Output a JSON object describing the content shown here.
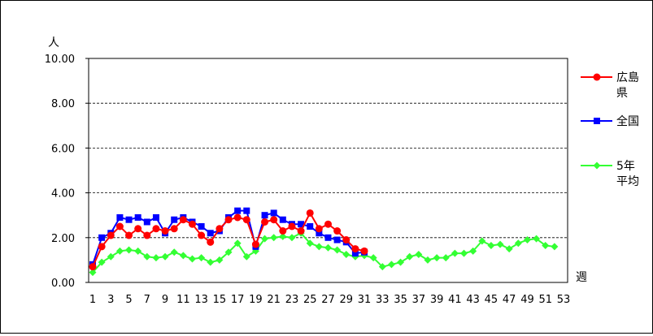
{
  "chart_data": {
    "type": "line",
    "ylabel": "人",
    "xlabel": "週",
    "ylim": [
      0,
      10
    ],
    "yticks": [
      "0.00",
      "2.00",
      "4.00",
      "6.00",
      "8.00",
      "10.00"
    ],
    "xlim": [
      1,
      53
    ],
    "xticks": [
      "1",
      "3",
      "5",
      "7",
      "9",
      "11",
      "13",
      "15",
      "17",
      "19",
      "21",
      "23",
      "25",
      "27",
      "29",
      "31",
      "33",
      "35",
      "37",
      "39",
      "41",
      "43",
      "45",
      "47",
      "49",
      "51",
      "53"
    ],
    "grid": "horizontal-dashed",
    "legend_position": "right",
    "series": [
      {
        "name": "広島県",
        "legend_lines": [
          "広島",
          "県"
        ],
        "color": "#FF0000",
        "marker": "circle",
        "x": [
          1,
          2,
          3,
          4,
          5,
          6,
          7,
          8,
          9,
          10,
          11,
          12,
          13,
          14,
          15,
          16,
          17,
          18,
          19,
          20,
          21,
          22,
          23,
          24,
          25,
          26,
          27,
          28,
          29,
          30,
          31
        ],
        "values": [
          0.7,
          1.6,
          2.1,
          2.5,
          2.1,
          2.4,
          2.1,
          2.4,
          2.3,
          2.4,
          2.8,
          2.6,
          2.1,
          1.8,
          2.4,
          2.8,
          2.9,
          2.8,
          1.7,
          2.7,
          2.8,
          2.3,
          2.5,
          2.3,
          3.1,
          2.4,
          2.6,
          2.3,
          1.9,
          1.5,
          1.4
        ]
      },
      {
        "name": "全国",
        "legend_lines": [
          "全国"
        ],
        "color": "#0000FF",
        "marker": "square",
        "x": [
          1,
          2,
          3,
          4,
          5,
          6,
          7,
          8,
          9,
          10,
          11,
          12,
          13,
          14,
          15,
          16,
          17,
          18,
          19,
          20,
          21,
          22,
          23,
          24,
          25,
          26,
          27,
          28,
          29,
          30,
          31
        ],
        "values": [
          0.8,
          2.0,
          2.2,
          2.9,
          2.8,
          2.9,
          2.7,
          2.9,
          2.2,
          2.8,
          2.9,
          2.7,
          2.5,
          2.2,
          2.3,
          2.9,
          3.2,
          3.2,
          1.6,
          3.0,
          3.1,
          2.8,
          2.6,
          2.6,
          2.5,
          2.2,
          2.0,
          1.9,
          1.8,
          1.3,
          1.35
        ]
      },
      {
        "name": "5年平均",
        "legend_lines": [
          "5年",
          "平均"
        ],
        "color": "#33FF33",
        "marker": "diamond",
        "x": [
          1,
          2,
          3,
          4,
          5,
          6,
          7,
          8,
          9,
          10,
          11,
          12,
          13,
          14,
          15,
          16,
          17,
          18,
          19,
          20,
          21,
          22,
          23,
          24,
          25,
          26,
          27,
          28,
          29,
          30,
          31,
          32,
          33,
          34,
          35,
          36,
          37,
          38,
          39,
          40,
          41,
          42,
          43,
          44,
          45,
          46,
          47,
          48,
          49,
          50,
          51,
          52
        ],
        "values": [
          0.45,
          0.9,
          1.15,
          1.4,
          1.45,
          1.4,
          1.15,
          1.1,
          1.15,
          1.35,
          1.2,
          1.05,
          1.1,
          0.9,
          1.0,
          1.35,
          1.75,
          1.15,
          1.4,
          1.95,
          2.0,
          2.05,
          2.0,
          2.2,
          1.75,
          1.6,
          1.55,
          1.45,
          1.25,
          1.15,
          1.2,
          1.1,
          0.7,
          0.8,
          0.9,
          1.15,
          1.25,
          1.0,
          1.1,
          1.1,
          1.3,
          1.3,
          1.4,
          1.85,
          1.65,
          1.7,
          1.5,
          1.75,
          1.9,
          1.95,
          1.65,
          1.6
        ]
      }
    ]
  }
}
